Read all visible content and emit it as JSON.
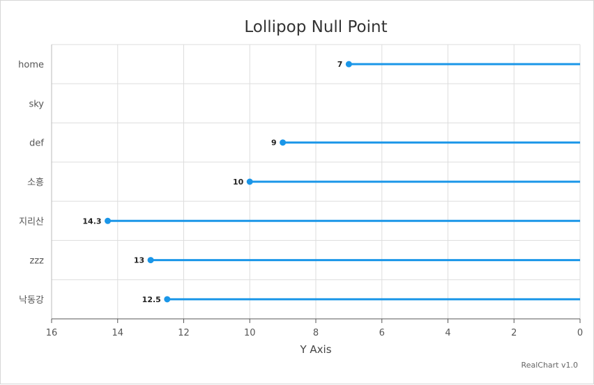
{
  "chart_data": {
    "type": "lollipop",
    "title": "Lollipop Null Point",
    "categories": [
      "home",
      "sky",
      "def",
      "소흥",
      "지리산",
      "zzz",
      "낙동강"
    ],
    "series": [
      {
        "values": [
          7,
          null,
          9,
          10,
          14.3,
          13,
          12.5
        ],
        "color": "#1a96e8"
      }
    ],
    "data_labels": [
      "7",
      "",
      "9",
      "10",
      "14.3",
      "13",
      "12.5"
    ],
    "x_axis": {
      "title": "Y Axis",
      "min": 0,
      "max": 16,
      "reversed": true,
      "ticks": [
        16,
        14,
        12,
        10,
        8,
        6,
        4,
        2,
        0
      ],
      "tick_labels": [
        "16",
        "14",
        "12",
        "10",
        "8",
        "6",
        "4",
        "2",
        "0"
      ]
    },
    "category_axis": {
      "position": "left"
    },
    "grid": true,
    "credit": "RealChart v1.0"
  },
  "colors": {
    "grid": "#dddddd",
    "axis": "#555555",
    "series": "#1a96e8"
  }
}
